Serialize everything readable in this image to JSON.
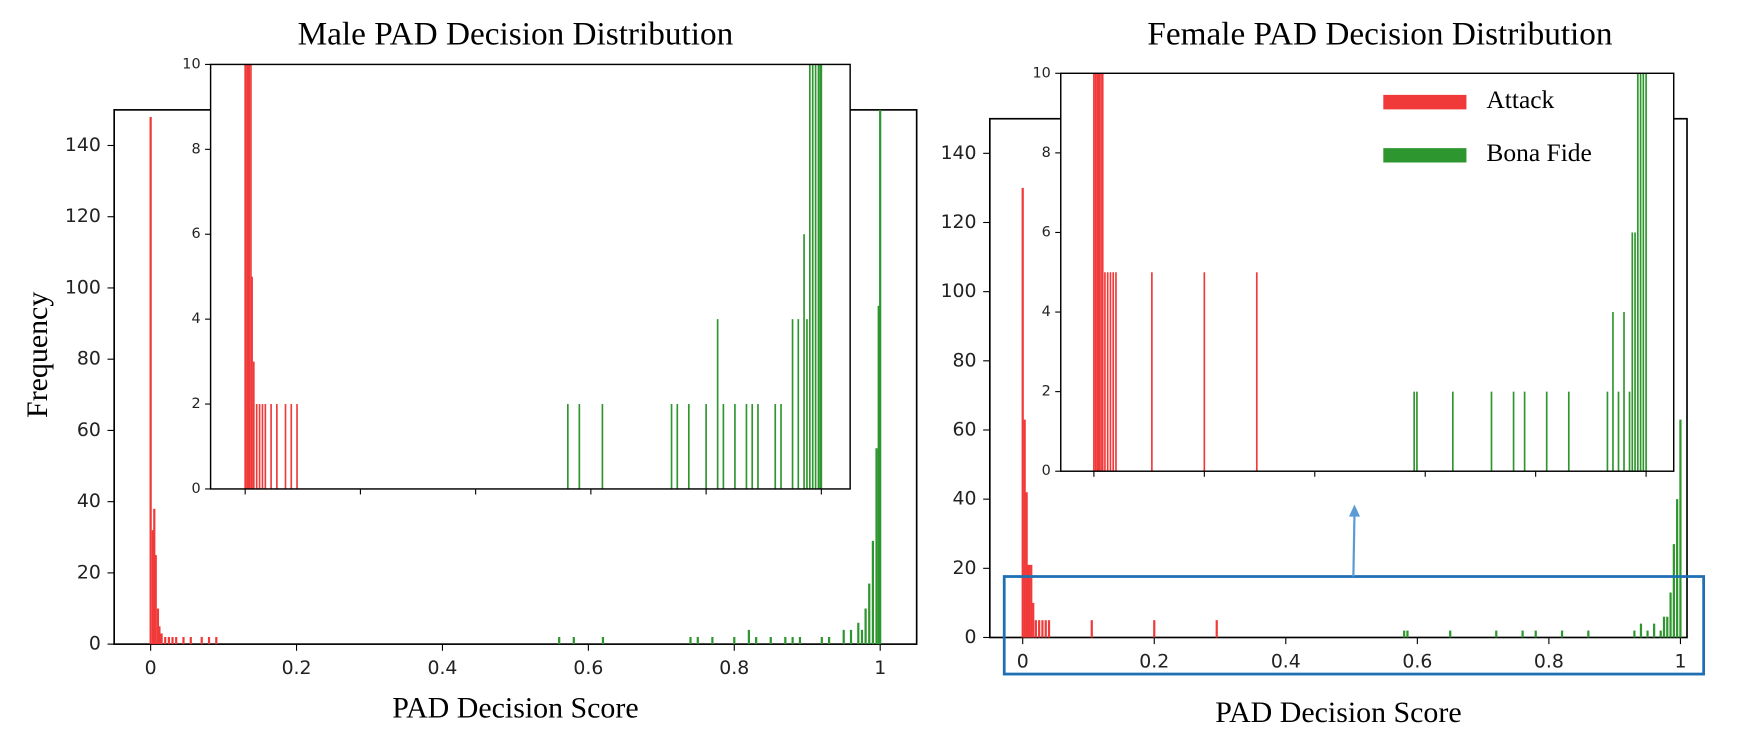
{
  "chart_data": [
    {
      "type": "bar",
      "title": "Male PAD Decision Distribution",
      "xlabel": "PAD Decision Score",
      "ylabel": "Frequency",
      "xlim": [
        -0.05,
        1.05
      ],
      "xticks": [
        0.0,
        0.2,
        0.4,
        0.6,
        0.8,
        1.0
      ],
      "ylim": [
        0,
        150
      ],
      "yticks": [
        0,
        20,
        40,
        60,
        80,
        100,
        120,
        140
      ],
      "series": [
        {
          "name": "Attack",
          "color": "#f03a3a",
          "x": [
            0.0,
            0.003,
            0.005,
            0.007,
            0.01,
            0.012,
            0.015,
            0.02,
            0.025,
            0.03,
            0.035,
            0.045,
            0.055,
            0.07,
            0.08,
            0.09
          ],
          "values": [
            148,
            32,
            38,
            25,
            10,
            5,
            3,
            2,
            2,
            2,
            2,
            2,
            2,
            2,
            2,
            2
          ]
        },
        {
          "name": "Bona Fide",
          "color": "#2e962e",
          "x": [
            0.56,
            0.58,
            0.62,
            0.74,
            0.75,
            0.77,
            0.8,
            0.82,
            0.83,
            0.85,
            0.87,
            0.88,
            0.89,
            0.92,
            0.93,
            0.95,
            0.96,
            0.97,
            0.975,
            0.98,
            0.985,
            0.99,
            0.995,
            0.998,
            1.0
          ],
          "values": [
            2,
            2,
            2,
            2,
            2,
            2,
            2,
            4,
            2,
            2,
            2,
            2,
            2,
            2,
            2,
            4,
            4,
            6,
            4,
            10,
            17,
            29,
            55,
            95,
            150
          ]
        }
      ],
      "inset": {
        "xlim": [
          -0.06,
          1.05
        ],
        "ylim": [
          0,
          10
        ],
        "yticks": [
          0,
          2,
          4,
          6,
          8,
          10
        ]
      }
    },
    {
      "type": "bar",
      "title": "Female PAD Decision Distribution",
      "xlabel": "PAD Decision Score",
      "legend": "upper right",
      "xlim": [
        -0.05,
        1.01
      ],
      "xticks": [
        0.0,
        0.2,
        0.4,
        0.6,
        0.8,
        1.0
      ],
      "ylim": [
        0,
        150
      ],
      "yticks": [
        0,
        20,
        40,
        60,
        80,
        100,
        120,
        140
      ],
      "series": [
        {
          "name": "Attack",
          "color": "#f03a3a",
          "x": [
            0.0,
            0.003,
            0.006,
            0.008,
            0.01,
            0.013,
            0.016,
            0.02,
            0.025,
            0.03,
            0.035,
            0.04,
            0.105,
            0.2,
            0.295
          ],
          "values": [
            130,
            63,
            42,
            21,
            21,
            21,
            10,
            5,
            5,
            5,
            5,
            5,
            5,
            5,
            5
          ]
        },
        {
          "name": "Bona Fide",
          "color": "#2e962e",
          "x": [
            0.58,
            0.585,
            0.65,
            0.72,
            0.76,
            0.78,
            0.82,
            0.86,
            0.93,
            0.94,
            0.95,
            0.96,
            0.97,
            0.975,
            0.98,
            0.985,
            0.99,
            0.995,
            1.0
          ],
          "values": [
            2,
            2,
            2,
            2,
            2,
            2,
            2,
            2,
            2,
            4,
            2,
            4,
            2,
            6,
            6,
            13,
            27,
            40,
            63
          ]
        }
      ],
      "inset": {
        "xlim": [
          -0.06,
          1.05
        ],
        "ylim": [
          0,
          10
        ],
        "yticks": [
          0,
          2,
          4,
          6,
          8,
          10
        ]
      }
    }
  ]
}
